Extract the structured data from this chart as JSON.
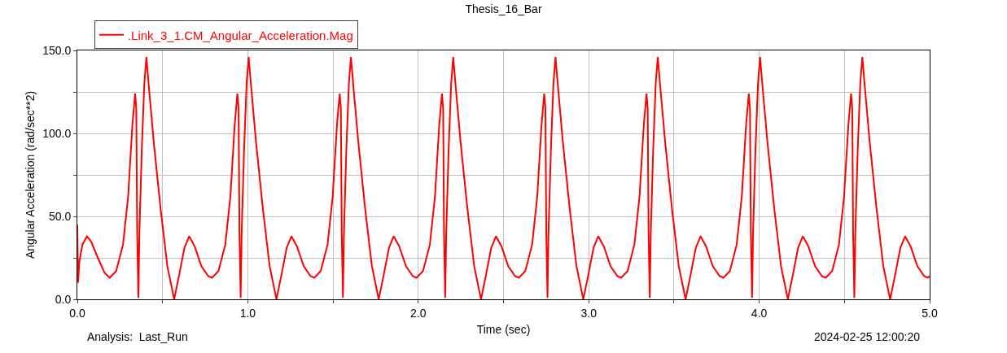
{
  "chart_data": {
    "type": "line",
    "title": "Thesis_16_Bar",
    "xlabel": "Time (sec)",
    "ylabel": "Angular Acceleration (rad/sec**2)",
    "annotations": [
      "Analysis:  Last_Run",
      "2024-02-25 12:00:20"
    ],
    "xlim": [
      0,
      5
    ],
    "ylim": [
      0,
      150
    ],
    "xticks": [
      {
        "value": 0,
        "label": "0.0"
      },
      {
        "value": 0.5,
        "label": null
      },
      {
        "value": 1,
        "label": "1.0"
      },
      {
        "value": 1.5,
        "label": null
      },
      {
        "value": 2,
        "label": "2.0"
      },
      {
        "value": 2.5,
        "label": null
      },
      {
        "value": 3,
        "label": "3.0"
      },
      {
        "value": 3.5,
        "label": null
      },
      {
        "value": 4,
        "label": "4.0"
      },
      {
        "value": 4.5,
        "label": null
      },
      {
        "value": 5,
        "label": "5.0"
      }
    ],
    "yticks": [
      {
        "value": 0,
        "label": "0.0"
      },
      {
        "value": 25,
        "label": null
      },
      {
        "value": 50,
        "label": "50.0"
      },
      {
        "value": 75,
        "label": null
      },
      {
        "value": 100,
        "label": "100.0"
      },
      {
        "value": 125,
        "label": null
      },
      {
        "value": 150,
        "label": "150.0"
      }
    ],
    "grid": true,
    "legend": "top left",
    "marker": "none",
    "line_style": "solid",
    "series": [
      {
        "name": ".Link_3_1.CM_Angular_Acceleration.Mag",
        "color": "#ff0000",
        "x": [
          0,
          0.004,
          0.012,
          0.03,
          0.056,
          0.08,
          0.12,
          0.16,
          0.19,
          0.228,
          0.268,
          0.298,
          0.323,
          0.339,
          0.346,
          0.351,
          0.358,
          0.364,
          0.378,
          0.393,
          0.405,
          0.418,
          0.448,
          0.488,
          0.528,
          0.568,
          0.598,
          0.628,
          0.656,
          0.688,
          0.728,
          0.768,
          0.79,
          0.828,
          0.868,
          0.898,
          0.923,
          0.939,
          0.946,
          0.951,
          0.958,
          0.964,
          0.978,
          0.993,
          1.005,
          1.018,
          1.048,
          1.088,
          1.128,
          1.168,
          1.198,
          1.228,
          1.256,
          1.288,
          1.328,
          1.368,
          1.39,
          1.428,
          1.468,
          1.498,
          1.523,
          1.539,
          1.546,
          1.551,
          1.558,
          1.564,
          1.578,
          1.593,
          1.605,
          1.618,
          1.648,
          1.688,
          1.728,
          1.768,
          1.798,
          1.828,
          1.856,
          1.888,
          1.928,
          1.968,
          1.99,
          2.028,
          2.068,
          2.098,
          2.123,
          2.139,
          2.146,
          2.151,
          2.158,
          2.164,
          2.178,
          2.193,
          2.205,
          2.218,
          2.248,
          2.288,
          2.328,
          2.368,
          2.398,
          2.428,
          2.456,
          2.488,
          2.528,
          2.568,
          2.59,
          2.628,
          2.668,
          2.698,
          2.723,
          2.739,
          2.746,
          2.751,
          2.758,
          2.764,
          2.778,
          2.793,
          2.805,
          2.818,
          2.848,
          2.888,
          2.928,
          2.968,
          2.998,
          3.028,
          3.056,
          3.088,
          3.128,
          3.168,
          3.19,
          3.228,
          3.268,
          3.298,
          3.323,
          3.339,
          3.346,
          3.351,
          3.358,
          3.364,
          3.378,
          3.393,
          3.405,
          3.418,
          3.448,
          3.488,
          3.528,
          3.568,
          3.598,
          3.628,
          3.656,
          3.688,
          3.728,
          3.768,
          3.79,
          3.828,
          3.868,
          3.898,
          3.923,
          3.939,
          3.946,
          3.951,
          3.958,
          3.964,
          3.978,
          3.993,
          4.005,
          4.018,
          4.048,
          4.088,
          4.128,
          4.168,
          4.198,
          4.228,
          4.256,
          4.288,
          4.328,
          4.368,
          4.39,
          4.428,
          4.468,
          4.498,
          4.523,
          4.539,
          4.546,
          4.551,
          4.558,
          4.564,
          4.578,
          4.593,
          4.605,
          4.618,
          4.648,
          4.688,
          4.728,
          4.768,
          4.798,
          4.828,
          4.856,
          4.888,
          4.928,
          4.968,
          4.99,
          5.0
        ],
        "values": [
          45,
          10,
          23,
          33,
          38,
          35,
          25,
          16,
          13,
          17,
          33,
          62,
          105,
          124,
          115,
          40,
          1,
          40,
          90,
          130,
          146,
          130,
          95,
          55,
          20,
          0,
          15,
          31,
          38,
          32,
          20,
          14,
          13,
          17,
          33,
          62,
          105,
          124,
          115,
          40,
          1,
          40,
          90,
          130,
          146,
          130,
          95,
          55,
          20,
          0,
          15,
          31,
          38,
          32,
          20,
          14,
          13,
          17,
          33,
          62,
          105,
          124,
          115,
          40,
          1,
          40,
          90,
          130,
          146,
          130,
          95,
          55,
          20,
          0,
          15,
          31,
          38,
          32,
          20,
          14,
          13,
          17,
          33,
          62,
          105,
          124,
          115,
          40,
          1,
          40,
          90,
          130,
          146,
          130,
          95,
          55,
          20,
          0,
          15,
          31,
          38,
          32,
          20,
          14,
          13,
          17,
          33,
          62,
          105,
          124,
          115,
          40,
          1,
          40,
          90,
          130,
          146,
          130,
          95,
          55,
          20,
          0,
          15,
          31,
          38,
          32,
          20,
          14,
          13,
          17,
          33,
          62,
          105,
          124,
          115,
          40,
          1,
          40,
          90,
          130,
          146,
          130,
          95,
          55,
          20,
          0,
          15,
          31,
          38,
          32,
          20,
          14,
          13,
          17,
          33,
          62,
          105,
          124,
          115,
          40,
          1,
          40,
          90,
          130,
          146,
          130,
          95,
          55,
          20,
          0,
          15,
          31,
          38,
          32,
          20,
          14,
          13,
          17,
          33,
          62,
          105,
          124,
          115,
          40,
          1,
          40,
          90,
          130,
          146,
          130,
          95,
          55,
          20,
          0,
          15,
          31,
          38,
          32,
          20,
          14,
          13,
          14
        ]
      }
    ]
  }
}
